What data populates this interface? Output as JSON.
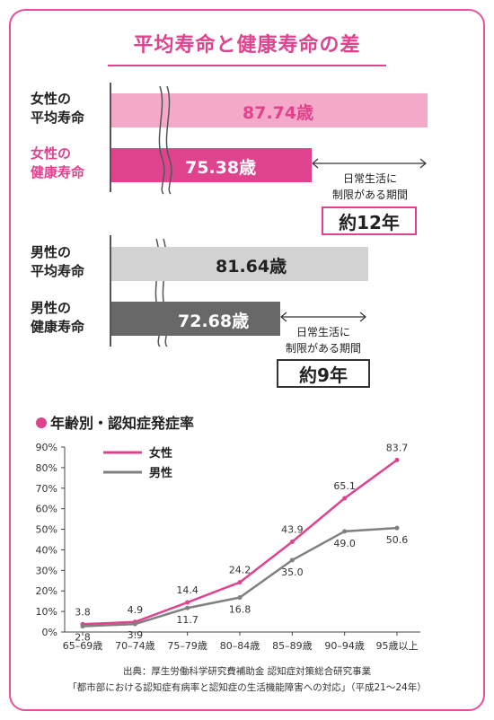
{
  "title": "平均寿命と健康寿命の差",
  "colors": {
    "accent": "#e0438e",
    "female_avg": "#f4a9c8",
    "female_health": "#e0438e",
    "male_avg": "#d2d2d2",
    "male_health": "#686868"
  },
  "female": {
    "avg_label_1": "女性の",
    "avg_label_2": "平均寿命",
    "avg_value": "87.74歳",
    "health_label_1": "女性の",
    "health_label_2": "健康寿命",
    "health_value": "75.38歳",
    "gap_note_1": "日常生活に",
    "gap_note_2": "制限がある期間",
    "gap": "約12年"
  },
  "male": {
    "avg_label_1": "男性の",
    "avg_label_2": "平均寿命",
    "avg_value": "81.64歳",
    "health_label_1": "男性の",
    "health_label_2": "健康寿命",
    "health_value": "72.68歳",
    "gap_note_1": "日常生活に",
    "gap_note_2": "制限がある期間",
    "gap": "約9年"
  },
  "dementia_title": "年齢別・認知症発症率",
  "chart_data": {
    "type": "line",
    "title": "年齢別・認知症発症率",
    "categories": [
      "65–69歳",
      "70–74歳",
      "75–79歳",
      "80–84歳",
      "85–89歳",
      "90–94歳",
      "95歳以上"
    ],
    "yticks": [
      "0%",
      "10%",
      "20%",
      "30%",
      "40%",
      "50%",
      "60%",
      "70%",
      "80%",
      "90%"
    ],
    "ylim": [
      0,
      90
    ],
    "grid": false,
    "legend_position": "top-left",
    "series": [
      {
        "name": "女性",
        "color": "#e0438e",
        "values": [
          3.8,
          4.9,
          14.4,
          24.2,
          43.9,
          65.1,
          83.7
        ],
        "labels": [
          "3.8",
          "4.9",
          "14.4",
          "24.2",
          "43.9",
          "65.1",
          "83.7"
        ]
      },
      {
        "name": "男性",
        "color": "#808080",
        "values": [
          2.8,
          3.9,
          11.7,
          16.8,
          35.0,
          49.0,
          50.6
        ],
        "labels": [
          "2.8",
          "3.9",
          "11.7",
          "16.8",
          "35.0",
          "49.0",
          "50.6"
        ]
      }
    ]
  },
  "source_line_1": "出典：厚生労働科学研究費補助金 認知症対策総合研究事業",
  "source_line_2": "「都市部における認知症有病率と認知症の生活機能障害への対応」（平成21〜24年）"
}
